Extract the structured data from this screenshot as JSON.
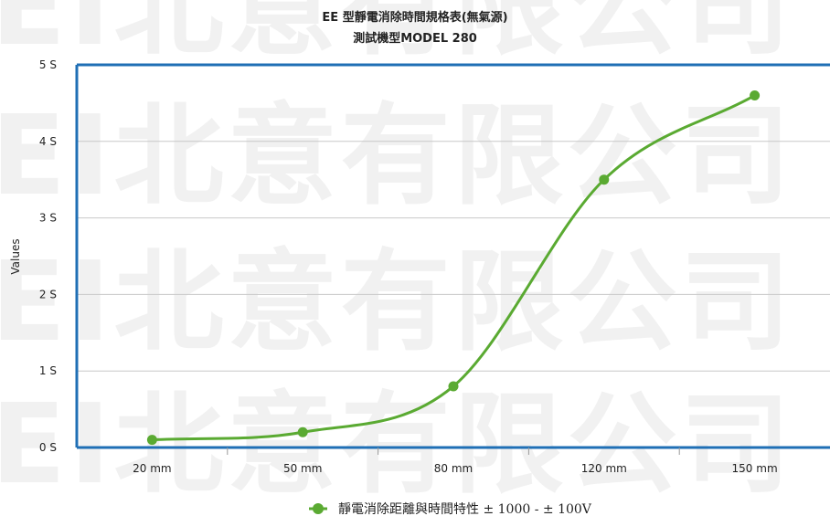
{
  "chart_data": {
    "type": "line",
    "title": "EE 型靜電消除時間規格表(無氣源)",
    "subtitle": "測試機型MODEL 280",
    "xlabel": "",
    "ylabel": "Values",
    "categories": [
      "20 mm",
      "50 mm",
      "80 mm",
      "120 mm",
      "150 mm"
    ],
    "y_ticks": [
      "0 S",
      "1 S",
      "2 S",
      "3 S",
      "4 S",
      "5 S"
    ],
    "ylim": [
      0,
      5
    ],
    "grid": true,
    "legend_position": "bottom",
    "smooth": true,
    "series": [
      {
        "name": "靜電消除距離與時間特性 ± 1000 - ± 100V",
        "values": [
          0.1,
          0.2,
          0.8,
          3.5,
          4.6
        ]
      }
    ]
  },
  "colors": {
    "series": "#5aaa32",
    "axis": "#1f6fb5",
    "grid": "#c8c8c8",
    "watermark": "#f1f1f1"
  },
  "watermark": {
    "text": "EI北意有限公司"
  }
}
